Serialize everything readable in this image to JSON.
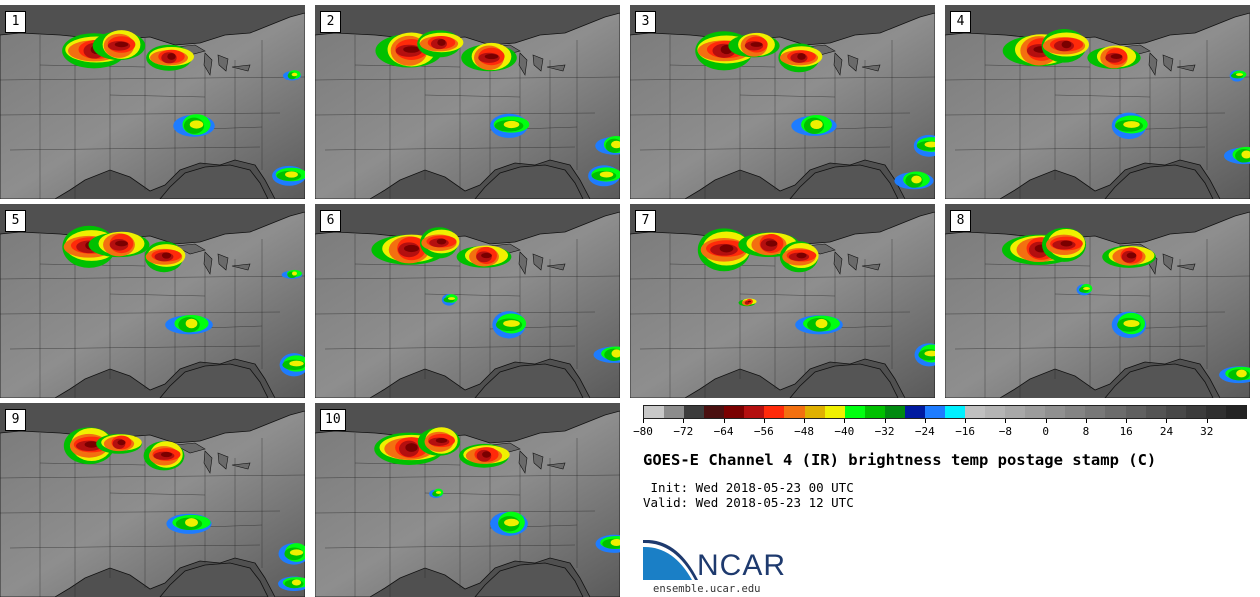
{
  "panels": [
    {
      "label": "1",
      "storms": [
        [
          95,
          45,
          22,
          1.0
        ],
        [
          120,
          40,
          18,
          1.3
        ],
        [
          170,
          52,
          16,
          1.2
        ],
        [
          195,
          120,
          14,
          0.5
        ],
        [
          290,
          170,
          12,
          0.4
        ],
        [
          293,
          70,
          6,
          0.3
        ]
      ]
    },
    {
      "label": "2",
      "storms": [
        [
          95,
          45,
          22,
          1.1
        ],
        [
          125,
          38,
          16,
          1.2
        ],
        [
          175,
          52,
          18,
          1.3
        ],
        [
          195,
          120,
          14,
          0.5
        ],
        [
          300,
          140,
          12,
          0.5
        ],
        [
          290,
          170,
          12,
          0.4
        ]
      ]
    },
    {
      "label": "3",
      "storms": [
        [
          95,
          45,
          22,
          1.1
        ],
        [
          125,
          40,
          16,
          1.2
        ],
        [
          170,
          52,
          16,
          1.2
        ],
        [
          185,
          120,
          14,
          0.5
        ],
        [
          300,
          140,
          12,
          0.5
        ],
        [
          285,
          175,
          12,
          0.4
        ]
      ]
    },
    {
      "label": "4",
      "storms": [
        [
          95,
          45,
          22,
          1.1
        ],
        [
          120,
          40,
          18,
          1.3
        ],
        [
          170,
          52,
          16,
          1.2
        ],
        [
          185,
          120,
          14,
          0.5
        ],
        [
          300,
          150,
          12,
          0.5
        ],
        [
          293,
          70,
          6,
          0.3
        ]
      ]
    },
    {
      "label": "5",
      "storms": [
        [
          90,
          42,
          22,
          1.1
        ],
        [
          120,
          40,
          18,
          1.3
        ],
        [
          165,
          52,
          16,
          1.2
        ],
        [
          190,
          120,
          14,
          0.5
        ],
        [
          295,
          160,
          12,
          0.5
        ],
        [
          293,
          70,
          6,
          0.3
        ]
      ]
    },
    {
      "label": "6",
      "storms": [
        [
          95,
          45,
          22,
          1.1
        ],
        [
          125,
          38,
          16,
          1.2
        ],
        [
          170,
          52,
          16,
          1.2
        ],
        [
          195,
          120,
          14,
          0.5
        ],
        [
          300,
          150,
          12,
          0.5
        ],
        [
          135,
          95,
          6,
          0.4
        ]
      ]
    },
    {
      "label": "7",
      "storms": [
        [
          95,
          45,
          22,
          1.1
        ],
        [
          140,
          40,
          18,
          1.3
        ],
        [
          170,
          52,
          16,
          1.2
        ],
        [
          190,
          120,
          14,
          0.5
        ],
        [
          300,
          150,
          12,
          0.5
        ],
        [
          118,
          98,
          5,
          1.2
        ]
      ]
    },
    {
      "label": "8",
      "storms": [
        [
          95,
          45,
          22,
          1.1
        ],
        [
          120,
          40,
          18,
          1.3
        ],
        [
          185,
          52,
          16,
          1.2
        ],
        [
          185,
          120,
          14,
          0.5
        ],
        [
          295,
          170,
          12,
          0.5
        ],
        [
          140,
          85,
          6,
          0.3
        ]
      ]
    },
    {
      "label": "9",
      "storms": [
        [
          90,
          42,
          20,
          1.0
        ],
        [
          120,
          40,
          14,
          1.2
        ],
        [
          165,
          52,
          16,
          1.1
        ],
        [
          190,
          120,
          14,
          0.5
        ],
        [
          295,
          150,
          12,
          0.5
        ],
        [
          295,
          180,
          10,
          0.4
        ]
      ]
    },
    {
      "label": "10",
      "storms": [
        [
          95,
          45,
          22,
          1.1
        ],
        [
          125,
          38,
          16,
          1.3
        ],
        [
          170,
          52,
          16,
          1.2
        ],
        [
          195,
          120,
          14,
          0.5
        ],
        [
          300,
          140,
          12,
          0.5
        ],
        [
          122,
          90,
          5,
          0.6
        ]
      ]
    }
  ],
  "colorbar": {
    "colors": [
      "#c8c8c8",
      "#8c8c8c",
      "#3c3c3c",
      "#4a1010",
      "#7a0000",
      "#b40f0f",
      "#ff2a0a",
      "#f37010",
      "#e0b000",
      "#f0f000",
      "#00ff10",
      "#00c000",
      "#008a10",
      "#001aa0",
      "#1e7cff",
      "#00f0ff",
      "#c0c0c0",
      "#b4b4b4",
      "#a8a8a8",
      "#9c9c9c",
      "#909090",
      "#848484",
      "#787878",
      "#6c6c6c",
      "#606060",
      "#545454",
      "#484848",
      "#3c3c3c",
      "#303030",
      "#242424"
    ],
    "ticks": [
      "−80",
      "−72",
      "−64",
      "−56",
      "−48",
      "−40",
      "−32",
      "−24",
      "−16",
      "−8",
      "0",
      "8",
      "16",
      "24",
      "32"
    ],
    "min": -80,
    "max": 40
  },
  "title": "GOES-E Channel 4 (IR) brightness temp postage stamp (C)",
  "init": " Init: Wed 2018-05-23 00 UTC",
  "valid": "Valid: Wed 2018-05-23 12 UTC",
  "logo_text": "NCAR",
  "url": "ensemble.ucar.edu"
}
